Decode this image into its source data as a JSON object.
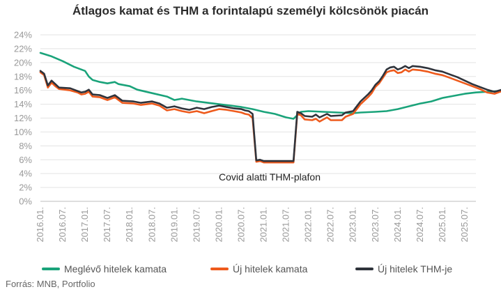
{
  "title": "Átlagos kamat és THM a forintalapú személyi kölcsönök piacán",
  "source": "Forrás: MNB, Portfolio",
  "annotation": "Covid alatti THM-plafon",
  "colors": {
    "existing": "#1aa37a",
    "new_rate": "#ee5a1c",
    "new_thm": "#2f333b",
    "grid": "#e3e3e3",
    "text": "#999999"
  },
  "chart_data": {
    "type": "line",
    "title": "Átlagos kamat és THM a forintalapú személyi kölcsönök piacán",
    "xlabel": "",
    "ylabel": "",
    "ylim": [
      0,
      24
    ],
    "yticks": [
      "0%",
      "2%",
      "4%",
      "6%",
      "8%",
      "10%",
      "12%",
      "14%",
      "16%",
      "18%",
      "20%",
      "22%",
      "24%"
    ],
    "xticks": [
      "2016.01.",
      "2016.07.",
      "2017.01.",
      "2017.07.",
      "2018.01.",
      "2018.07.",
      "2019.01.",
      "2019.07.",
      "2020.01.",
      "2020.07.",
      "2021.01.",
      "2021.07.",
      "2022.01.",
      "2022.07.",
      "2023.01.",
      "2023.07.",
      "2024.01.",
      "2024.07.",
      "2025.01.",
      "2025.07."
    ],
    "legend_position": "bottom",
    "grid": true,
    "x_start": "2016.01.",
    "x_end": "2025.10.",
    "series": [
      {
        "name": "Meglévő hitelek kamata",
        "color": "#1aa37a",
        "values": [
          [
            0,
            21.4
          ],
          [
            3,
            20.9
          ],
          [
            6,
            20.2
          ],
          [
            9,
            19.4
          ],
          [
            12,
            18.8
          ],
          [
            13,
            18.0
          ],
          [
            14,
            17.5
          ],
          [
            16,
            17.2
          ],
          [
            18,
            17.0
          ],
          [
            20,
            17.2
          ],
          [
            21,
            16.9
          ],
          [
            24,
            16.6
          ],
          [
            26,
            16.1
          ],
          [
            30,
            15.6
          ],
          [
            34,
            15.1
          ],
          [
            36,
            14.6
          ],
          [
            38,
            14.8
          ],
          [
            42,
            14.4
          ],
          [
            48,
            14.0
          ],
          [
            54,
            13.6
          ],
          [
            57,
            13.3
          ],
          [
            60,
            12.9
          ],
          [
            63,
            12.6
          ],
          [
            66,
            12.1
          ],
          [
            68,
            11.9
          ],
          [
            70,
            12.9
          ],
          [
            72,
            13.0
          ],
          [
            76,
            12.9
          ],
          [
            80,
            12.8
          ],
          [
            84,
            12.7
          ],
          [
            86,
            12.8
          ],
          [
            90,
            12.9
          ],
          [
            93,
            13.0
          ],
          [
            96,
            13.3
          ],
          [
            99,
            13.7
          ],
          [
            102,
            14.1
          ],
          [
            105,
            14.4
          ],
          [
            108,
            14.9
          ],
          [
            111,
            15.2
          ],
          [
            114,
            15.5
          ],
          [
            117,
            15.7
          ],
          [
            120,
            15.8
          ],
          [
            123,
            15.9
          ],
          [
            126,
            15.9
          ],
          [
            129,
            15.8
          ],
          [
            132,
            15.8
          ],
          [
            135,
            15.7
          ],
          [
            137,
            15.6
          ]
        ]
      },
      {
        "name": "Új hitelek kamata",
        "color": "#ee5a1c",
        "values": [
          [
            0,
            18.6
          ],
          [
            1,
            18.2
          ],
          [
            2,
            16.4
          ],
          [
            3,
            17.1
          ],
          [
            4,
            16.6
          ],
          [
            5,
            16.2
          ],
          [
            8,
            16.0
          ],
          [
            10,
            15.7
          ],
          [
            11,
            15.4
          ],
          [
            12,
            15.5
          ],
          [
            13,
            15.8
          ],
          [
            14,
            15.1
          ],
          [
            16,
            15.0
          ],
          [
            18,
            14.6
          ],
          [
            20,
            15.0
          ],
          [
            22,
            14.2
          ],
          [
            25,
            14.1
          ],
          [
            27,
            13.9
          ],
          [
            30,
            14.1
          ],
          [
            32,
            13.8
          ],
          [
            34,
            13.1
          ],
          [
            36,
            13.3
          ],
          [
            38,
            13.0
          ],
          [
            40,
            12.8
          ],
          [
            42,
            13.0
          ],
          [
            44,
            12.7
          ],
          [
            46,
            13.0
          ],
          [
            48,
            13.3
          ],
          [
            50,
            13.2
          ],
          [
            52,
            13.0
          ],
          [
            54,
            12.8
          ],
          [
            55,
            12.6
          ],
          [
            56,
            12.5
          ],
          [
            57,
            12.0
          ],
          [
            58,
            5.7
          ],
          [
            59,
            5.8
          ],
          [
            60,
            5.6
          ],
          [
            63,
            5.6
          ],
          [
            66,
            5.6
          ],
          [
            68,
            5.6
          ],
          [
            69,
            12.6
          ],
          [
            70,
            12.4
          ],
          [
            71,
            11.8
          ],
          [
            73,
            11.7
          ],
          [
            74,
            11.9
          ],
          [
            75,
            11.5
          ],
          [
            77,
            12.1
          ],
          [
            78,
            11.7
          ],
          [
            81,
            11.7
          ],
          [
            82,
            12.2
          ],
          [
            84,
            12.6
          ],
          [
            86,
            14.0
          ],
          [
            88,
            15.0
          ],
          [
            89,
            15.6
          ],
          [
            90,
            16.5
          ],
          [
            91,
            17.0
          ],
          [
            92,
            17.8
          ],
          [
            93,
            18.6
          ],
          [
            94,
            18.8
          ],
          [
            95,
            18.9
          ],
          [
            96,
            18.5
          ],
          [
            97,
            18.6
          ],
          [
            98,
            19.0
          ],
          [
            99,
            18.7
          ],
          [
            100,
            19.0
          ],
          [
            102,
            18.9
          ],
          [
            104,
            18.7
          ],
          [
            106,
            18.4
          ],
          [
            108,
            18.2
          ],
          [
            110,
            17.8
          ],
          [
            112,
            17.4
          ],
          [
            114,
            17.0
          ],
          [
            116,
            16.6
          ],
          [
            118,
            16.2
          ],
          [
            120,
            15.7
          ],
          [
            122,
            15.5
          ],
          [
            124,
            15.9
          ],
          [
            126,
            15.9
          ],
          [
            128,
            15.9
          ],
          [
            130,
            15.3
          ],
          [
            132,
            15.1
          ],
          [
            134,
            14.9
          ]
        ]
      },
      {
        "name": "Új hitelek THM-je",
        "color": "#2f333b",
        "values": [
          [
            0,
            18.8
          ],
          [
            1,
            18.4
          ],
          [
            2,
            16.7
          ],
          [
            3,
            17.4
          ],
          [
            4,
            16.9
          ],
          [
            5,
            16.4
          ],
          [
            8,
            16.3
          ],
          [
            10,
            15.9
          ],
          [
            11,
            15.7
          ],
          [
            12,
            15.8
          ],
          [
            13,
            16.1
          ],
          [
            14,
            15.4
          ],
          [
            16,
            15.3
          ],
          [
            18,
            14.9
          ],
          [
            20,
            15.3
          ],
          [
            22,
            14.5
          ],
          [
            25,
            14.4
          ],
          [
            27,
            14.2
          ],
          [
            30,
            14.4
          ],
          [
            32,
            14.1
          ],
          [
            34,
            13.5
          ],
          [
            36,
            13.7
          ],
          [
            38,
            13.4
          ],
          [
            40,
            13.2
          ],
          [
            42,
            13.5
          ],
          [
            44,
            13.3
          ],
          [
            46,
            13.6
          ],
          [
            48,
            13.8
          ],
          [
            50,
            13.6
          ],
          [
            52,
            13.4
          ],
          [
            54,
            13.3
          ],
          [
            55,
            13.1
          ],
          [
            56,
            13.0
          ],
          [
            57,
            12.6
          ],
          [
            58,
            5.9
          ],
          [
            59,
            6.0
          ],
          [
            60,
            5.8
          ],
          [
            63,
            5.8
          ],
          [
            66,
            5.8
          ],
          [
            68,
            5.8
          ],
          [
            69,
            12.9
          ],
          [
            70,
            12.7
          ],
          [
            71,
            12.3
          ],
          [
            73,
            12.2
          ],
          [
            74,
            12.5
          ],
          [
            75,
            12.1
          ],
          [
            77,
            12.6
          ],
          [
            78,
            12.3
          ],
          [
            81,
            12.4
          ],
          [
            82,
            12.8
          ],
          [
            84,
            13.0
          ],
          [
            86,
            14.4
          ],
          [
            88,
            15.4
          ],
          [
            89,
            16.0
          ],
          [
            90,
            16.8
          ],
          [
            91,
            17.3
          ],
          [
            92,
            18.1
          ],
          [
            93,
            19.0
          ],
          [
            94,
            19.3
          ],
          [
            95,
            19.4
          ],
          [
            96,
            19.0
          ],
          [
            97,
            19.2
          ],
          [
            98,
            19.5
          ],
          [
            99,
            19.2
          ],
          [
            100,
            19.5
          ],
          [
            102,
            19.4
          ],
          [
            104,
            19.2
          ],
          [
            106,
            18.9
          ],
          [
            108,
            18.7
          ],
          [
            110,
            18.3
          ],
          [
            112,
            17.9
          ],
          [
            114,
            17.4
          ],
          [
            116,
            16.9
          ],
          [
            118,
            16.5
          ],
          [
            120,
            16.1
          ],
          [
            122,
            15.8
          ],
          [
            124,
            16.1
          ],
          [
            126,
            16.1
          ],
          [
            128,
            16.1
          ],
          [
            130,
            15.6
          ],
          [
            132,
            15.4
          ],
          [
            134,
            15.3
          ]
        ]
      }
    ]
  }
}
